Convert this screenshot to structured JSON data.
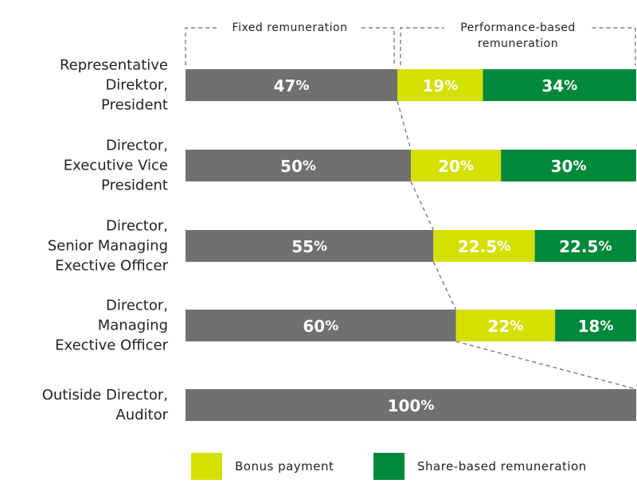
{
  "chart_data": {
    "type": "bar",
    "orientation": "horizontal",
    "stacked": true,
    "normalized": true,
    "unit": "%",
    "categories": [
      [
        "Representative",
        "Direktor,",
        "President"
      ],
      [
        "Director,",
        "Executive Vice",
        "President"
      ],
      [
        "Director,",
        "Senior Managing",
        "Exective Officer"
      ],
      [
        "Director,",
        "Managing",
        "Exective Officer"
      ],
      [
        "Outiside Director,",
        "Auditor"
      ]
    ],
    "series": [
      {
        "key": "fixed",
        "color": "#717071",
        "values": [
          47,
          50,
          55,
          60,
          100
        ]
      },
      {
        "key": "bonus",
        "name": "Bonus payment",
        "color": "#d4e000",
        "values": [
          19,
          20,
          22.5,
          22,
          0
        ]
      },
      {
        "key": "share",
        "name": "Share-based remuneration",
        "color": "#00883b",
        "values": [
          34,
          30,
          22.5,
          18,
          0
        ]
      }
    ],
    "headers": {
      "fixed": "Fixed remuneration",
      "performance": [
        "Performance-based",
        "remuneration"
      ]
    },
    "legend_position": "bottom",
    "grid": false
  }
}
